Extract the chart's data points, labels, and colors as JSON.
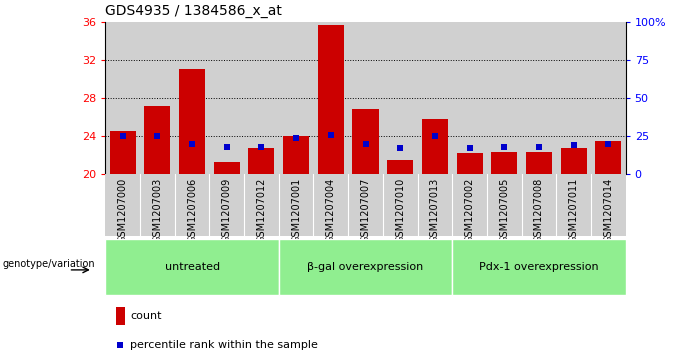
{
  "title": "GDS4935 / 1384586_x_at",
  "samples": [
    "GSM1207000",
    "GSM1207003",
    "GSM1207006",
    "GSM1207009",
    "GSM1207012",
    "GSM1207001",
    "GSM1207004",
    "GSM1207007",
    "GSM1207010",
    "GSM1207013",
    "GSM1207002",
    "GSM1207005",
    "GSM1207008",
    "GSM1207011",
    "GSM1207014"
  ],
  "counts": [
    24.5,
    27.2,
    31.0,
    21.3,
    22.8,
    24.0,
    35.7,
    26.8,
    21.5,
    25.8,
    22.2,
    22.3,
    22.3,
    22.8,
    23.5
  ],
  "percentile_vals": [
    25,
    25,
    20,
    18,
    18,
    24,
    26,
    20,
    17,
    25,
    17,
    18,
    18,
    19,
    20
  ],
  "ylim_left": [
    20,
    36
  ],
  "ylim_right": [
    0,
    100
  ],
  "yticks_left": [
    20,
    24,
    28,
    32,
    36
  ],
  "yticks_right": [
    0,
    25,
    50,
    75,
    100
  ],
  "ytick_labels_right": [
    "0",
    "25",
    "50",
    "75",
    "100%"
  ],
  "groups": [
    {
      "label": "untreated",
      "start": 0,
      "end": 5
    },
    {
      "label": "β-gal overexpression",
      "start": 5,
      "end": 10
    },
    {
      "label": "Pdx-1 overexpression",
      "start": 10,
      "end": 15
    }
  ],
  "bar_color": "#cc0000",
  "percentile_color": "#0000cc",
  "col_bg_color": "#d0d0d0",
  "plot_bg_color": "#ffffff",
  "group_bg_color": "#90ee90",
  "grid_color": "#000000",
  "legend_count_label": "count",
  "legend_percentile_label": "percentile rank within the sample",
  "genotype_label": "genotype/variation"
}
